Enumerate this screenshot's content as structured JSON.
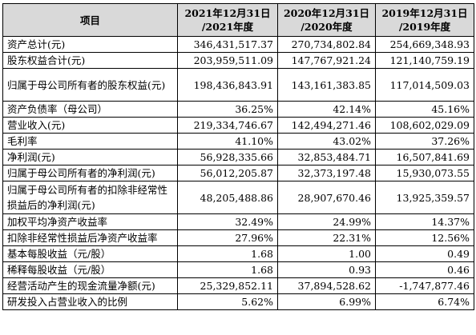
{
  "table": {
    "header": {
      "item": "项目",
      "columns": [
        {
          "line1": "2021年12月31日",
          "line2": "/2021年度"
        },
        {
          "line1": "2020年12月31日",
          "line2": "/2020年度"
        },
        {
          "line1": "2019年12月31日",
          "line2": "/2019年度"
        }
      ]
    },
    "rows": [
      {
        "label": "资产总计(元)",
        "values": [
          "346,431,517.37",
          "270,734,802.84",
          "254,669,348.93"
        ]
      },
      {
        "label": "股东权益合计(元)",
        "values": [
          "203,959,511.09",
          "147,767,921.24",
          "121,140,759.19"
        ]
      },
      {
        "label": "归属于母公司所有者的股东权益(元)",
        "values": [
          "198,436,843.91",
          "143,161,383.85",
          "117,014,509.03"
        ]
      },
      {
        "label": "资产负债率（母公司）",
        "values": [
          "36.25%",
          "42.14%",
          "45.16%"
        ]
      },
      {
        "label": "营业收入(元)",
        "values": [
          "219,334,746.67",
          "142,494,271.46",
          "108,602,029.09"
        ]
      },
      {
        "label": "毛利率",
        "values": [
          "41.10%",
          "43.02%",
          "37.26%"
        ]
      },
      {
        "label": "净利润(元)",
        "values": [
          "56,928,335.66",
          "32,853,484.71",
          "16,507,841.69"
        ]
      },
      {
        "label": "归属于母公司所有者的净利润(元)",
        "values": [
          "56,012,205.87",
          "32,373,197.48",
          "15,930,073.55"
        ]
      },
      {
        "label": "归属于母公司所有者的扣除非经常性损益后的净利润(元)",
        "values": [
          "48,205,488.86",
          "28,907,670.46",
          "13,925,359.57"
        ]
      },
      {
        "label": "加权平均净资产收益率",
        "values": [
          "32.49%",
          "24.99%",
          "14.37%"
        ]
      },
      {
        "label": "扣除非经常性损益后净资产收益率",
        "values": [
          "27.96%",
          "22.31%",
          "12.56%"
        ]
      },
      {
        "label": "基本每股收益（元/股）",
        "values": [
          "1.68",
          "1.00",
          "0.49"
        ]
      },
      {
        "label": "稀释每股收益（元/股）",
        "values": [
          "1.68",
          "0.93",
          "0.46"
        ]
      },
      {
        "label": "经营活动产生的现金流量净额(元)",
        "values": [
          "25,329,852.11",
          "37,894,528.62",
          "-1,747,877.46"
        ]
      },
      {
        "label": "研发投入占营业收入的比例",
        "values": [
          "5.62%",
          "6.99%",
          "6.74%"
        ]
      }
    ]
  }
}
